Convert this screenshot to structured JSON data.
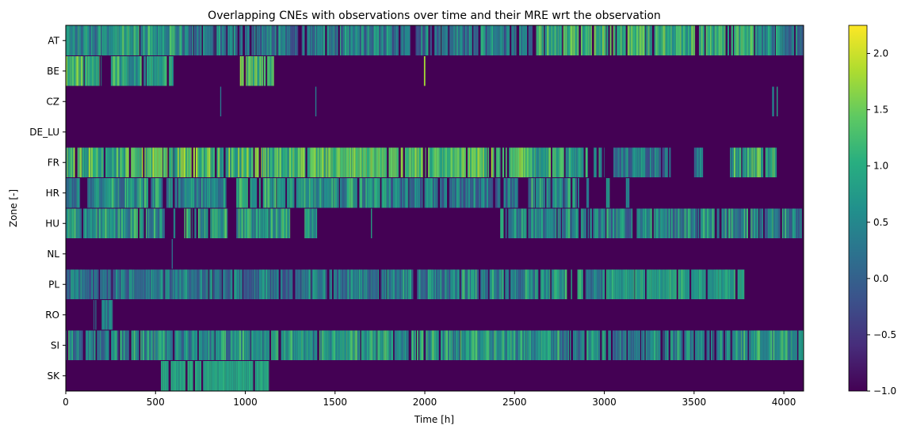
{
  "chart_data": {
    "type": "heatmap",
    "title": "Overlapping CNEs with observations over time and their MRE wrt the observation",
    "xlabel": "Time [h]",
    "ylabel": "Zone [-]",
    "xlim": [
      0,
      4110
    ],
    "x_ticks": [
      0,
      500,
      1000,
      1500,
      2000,
      2500,
      3000,
      3500,
      4000
    ],
    "zones": [
      "AT",
      "BE",
      "CZ",
      "DE_LU",
      "FR",
      "HR",
      "HU",
      "NL",
      "PL",
      "RO",
      "SI",
      "SK"
    ],
    "colorbar": {
      "colormap": "viridis",
      "min": -1.0,
      "max": 2.25,
      "ticks": [
        2.0,
        1.5,
        1.0,
        0.5,
        0.0,
        -0.5,
        -1.0
      ],
      "tick_labels": [
        "2.0",
        "1.5",
        "1.0",
        "0.5",
        "0.0",
        "−0.5",
        "−1.0"
      ]
    },
    "background_value": -1.0,
    "segments": {
      "AT": [
        [
          0,
          200,
          0.6,
          0.7
        ],
        [
          200,
          650,
          0.8,
          0.6
        ],
        [
          650,
          1400,
          0.35,
          0.6
        ],
        [
          1400,
          2600,
          0.4,
          0.7
        ],
        [
          2600,
          2620,
          -1.0,
          1.0
        ],
        [
          2620,
          2950,
          1.1,
          0.6
        ],
        [
          2950,
          3350,
          1.2,
          0.5
        ],
        [
          3350,
          3850,
          1.0,
          0.6
        ],
        [
          3850,
          4110,
          0.5,
          0.6
        ]
      ],
      "BE": [
        [
          0,
          200,
          1.2,
          0.5
        ],
        [
          200,
          240,
          -1.0,
          1.0
        ],
        [
          240,
          450,
          0.9,
          0.6
        ],
        [
          450,
          600,
          0.9,
          0.4
        ],
        [
          970,
          1010,
          1.4,
          0.4
        ],
        [
          1010,
          1100,
          1.2,
          0.5
        ],
        [
          1100,
          1160,
          1.3,
          0.5
        ],
        [
          1995,
          2003,
          1.8,
          0.0
        ]
      ],
      "CZ": [
        [
          860,
          866,
          0.3,
          0.0
        ],
        [
          1390,
          1396,
          0.4,
          0.0
        ],
        [
          3935,
          3945,
          0.5,
          0.0
        ],
        [
          3960,
          3966,
          0.9,
          0.0
        ]
      ],
      "DE_LU": [],
      "FR": [
        [
          0,
          400,
          1.1,
          0.7
        ],
        [
          400,
          1100,
          1.2,
          0.7
        ],
        [
          1100,
          1480,
          1.1,
          0.6
        ],
        [
          1480,
          2220,
          1.3,
          0.4
        ],
        [
          2220,
          2380,
          1.4,
          0.5
        ],
        [
          2380,
          2580,
          1.3,
          0.4
        ],
        [
          2580,
          2770,
          1.0,
          0.6
        ],
        [
          2770,
          3000,
          0.8,
          0.5
        ],
        [
          3050,
          3370,
          0.3,
          0.6
        ],
        [
          3500,
          3550,
          0.3,
          0.5
        ],
        [
          3700,
          3960,
          0.9,
          0.7
        ]
      ],
      "HR": [
        [
          0,
          80,
          0.4,
          0.5
        ],
        [
          120,
          540,
          0.6,
          0.7
        ],
        [
          560,
          900,
          0.5,
          0.6
        ],
        [
          950,
          1380,
          0.9,
          0.5
        ],
        [
          1380,
          1800,
          0.7,
          0.6
        ],
        [
          1800,
          2170,
          0.3,
          0.6
        ],
        [
          2170,
          2520,
          0.3,
          0.6
        ],
        [
          2570,
          2860,
          0.6,
          0.7
        ],
        [
          2900,
          2920,
          0.5,
          0.3
        ],
        [
          3010,
          3030,
          0.8,
          0.3
        ],
        [
          3120,
          3140,
          0.6,
          0.3
        ]
      ],
      "HU": [
        [
          0,
          550,
          0.7,
          0.7
        ],
        [
          600,
          610,
          0.7,
          0.2
        ],
        [
          660,
          900,
          0.8,
          0.6
        ],
        [
          950,
          1250,
          0.8,
          0.6
        ],
        [
          1330,
          1400,
          0.8,
          0.5
        ],
        [
          1700,
          1710,
          0.8,
          0.1
        ],
        [
          2420,
          2900,
          0.6,
          0.7
        ],
        [
          2900,
          3600,
          0.5,
          0.7
        ],
        [
          3600,
          4100,
          0.6,
          0.7
        ]
      ],
      "NL": [
        [
          590,
          596,
          0.2,
          0.0
        ]
      ],
      "PL": [
        [
          0,
          800,
          0.3,
          0.6
        ],
        [
          800,
          1500,
          0.3,
          0.6
        ],
        [
          1500,
          2200,
          0.4,
          0.7
        ],
        [
          2200,
          2650,
          0.6,
          0.7
        ],
        [
          2650,
          2820,
          0.8,
          0.5
        ],
        [
          2850,
          2930,
          0.7,
          0.6
        ],
        [
          2930,
          2990,
          0.5,
          0.6
        ],
        [
          2990,
          3780,
          0.9,
          0.3
        ]
      ],
      "RO": [
        [
          155,
          170,
          0.2,
          0.3
        ],
        [
          200,
          260,
          0.3,
          0.5
        ]
      ],
      "SI": [
        [
          0,
          520,
          0.5,
          0.8
        ],
        [
          520,
          1100,
          0.6,
          0.7
        ],
        [
          1100,
          1380,
          0.8,
          0.5
        ],
        [
          1380,
          1800,
          0.8,
          0.6
        ],
        [
          1800,
          2300,
          0.8,
          0.6
        ],
        [
          2300,
          2750,
          0.7,
          0.6
        ],
        [
          2750,
          3350,
          0.5,
          0.6
        ],
        [
          3350,
          3750,
          0.6,
          0.6
        ],
        [
          3750,
          4110,
          0.8,
          0.6
        ]
      ],
      "SK": [
        [
          530,
          1140,
          0.95,
          0.12
        ]
      ]
    }
  }
}
